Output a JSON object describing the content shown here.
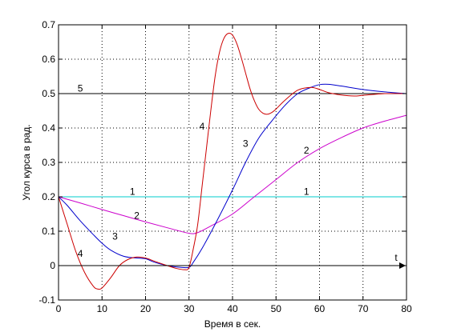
{
  "chart_data": {
    "type": "line",
    "title": "",
    "xlabel": "Время в сек.",
    "ylabel": "Угол курса в рад.",
    "t_label": "t",
    "xlim": [
      0,
      80
    ],
    "ylim": [
      -0.1,
      0.7
    ],
    "grid": true,
    "x_ticks": [
      0,
      10,
      20,
      30,
      40,
      50,
      60,
      70,
      80
    ],
    "y_ticks": [
      -0.1,
      0,
      0.1,
      0.2,
      0.3,
      0.4,
      0.5,
      0.6,
      0.7
    ],
    "x_tick_labels": [
      "0",
      "10",
      "20",
      "30",
      "40",
      "50",
      "60",
      "70",
      "80"
    ],
    "y_tick_labels": [
      "-0.1",
      "0",
      "0.1",
      "0.2",
      "0.3",
      "0.4",
      "0.5",
      "0.6",
      "0.7"
    ],
    "series": [
      {
        "name": "5",
        "color": "#000000",
        "labels": [
          {
            "text": "5",
            "x": 5,
            "y": 0.515
          }
        ],
        "points": [
          [
            0,
            0.5
          ],
          [
            80,
            0.5
          ]
        ]
      },
      {
        "name": "1",
        "color": "#00cccc",
        "labels": [
          {
            "text": "1",
            "x": 17,
            "y": 0.215
          },
          {
            "text": "1",
            "x": 57,
            "y": 0.215
          }
        ],
        "points": [
          [
            0,
            0.2
          ],
          [
            80,
            0.2
          ]
        ]
      },
      {
        "name": "2",
        "color": "#cc00cc",
        "labels": [
          {
            "text": "2",
            "x": 18,
            "y": 0.145
          },
          {
            "text": "2",
            "x": 57,
            "y": 0.335
          }
        ],
        "points": [
          [
            0,
            0.2
          ],
          [
            5,
            0.182
          ],
          [
            10,
            0.163
          ],
          [
            15,
            0.145
          ],
          [
            20,
            0.127
          ],
          [
            25,
            0.11
          ],
          [
            30,
            0.094
          ],
          [
            32,
            0.096
          ],
          [
            35,
            0.115
          ],
          [
            40,
            0.15
          ],
          [
            45,
            0.2
          ],
          [
            50,
            0.25
          ],
          [
            55,
            0.3
          ],
          [
            60,
            0.34
          ],
          [
            65,
            0.372
          ],
          [
            70,
            0.4
          ],
          [
            75,
            0.42
          ],
          [
            80,
            0.437
          ]
        ]
      },
      {
        "name": "3",
        "color": "#0000cc",
        "labels": [
          {
            "text": "3",
            "x": 13,
            "y": 0.085
          },
          {
            "text": "3",
            "x": 43,
            "y": 0.355
          }
        ],
        "points": [
          [
            0,
            0.2
          ],
          [
            2,
            0.175
          ],
          [
            5,
            0.13
          ],
          [
            8,
            0.09
          ],
          [
            10,
            0.065
          ],
          [
            12,
            0.045
          ],
          [
            15,
            0.027
          ],
          [
            18,
            0.022
          ],
          [
            20,
            0.02
          ],
          [
            22,
            0.01
          ],
          [
            25,
            0.0
          ],
          [
            28,
            -0.005
          ],
          [
            30,
            -0.005
          ],
          [
            31,
            0.01
          ],
          [
            33,
            0.05
          ],
          [
            36,
            0.12
          ],
          [
            40,
            0.22
          ],
          [
            43,
            0.3
          ],
          [
            46,
            0.37
          ],
          [
            49,
            0.42
          ],
          [
            52,
            0.465
          ],
          [
            55,
            0.5
          ],
          [
            58,
            0.518
          ],
          [
            60,
            0.526
          ],
          [
            62,
            0.527
          ],
          [
            65,
            0.522
          ],
          [
            70,
            0.512
          ],
          [
            75,
            0.505
          ],
          [
            80,
            0.5
          ]
        ]
      },
      {
        "name": "4",
        "color": "#cc0000",
        "labels": [
          {
            "text": "4",
            "x": 5,
            "y": 0.035
          },
          {
            "text": "4",
            "x": 33,
            "y": 0.405
          }
        ],
        "points": [
          [
            0,
            0.2
          ],
          [
            2,
            0.12
          ],
          [
            4,
            0.04
          ],
          [
            6,
            -0.02
          ],
          [
            8,
            -0.06
          ],
          [
            9,
            -0.068
          ],
          [
            10,
            -0.065
          ],
          [
            12,
            -0.035
          ],
          [
            14,
            0.0
          ],
          [
            16,
            0.018
          ],
          [
            18,
            0.025
          ],
          [
            20,
            0.022
          ],
          [
            22,
            0.013
          ],
          [
            25,
            0.0
          ],
          [
            27,
            -0.008
          ],
          [
            29,
            -0.012
          ],
          [
            30,
            -0.005
          ],
          [
            31,
            0.05
          ],
          [
            32,
            0.12
          ],
          [
            33,
            0.23
          ],
          [
            34,
            0.34
          ],
          [
            35,
            0.45
          ],
          [
            36,
            0.55
          ],
          [
            37,
            0.62
          ],
          [
            38,
            0.66
          ],
          [
            39,
            0.675
          ],
          [
            40,
            0.67
          ],
          [
            41,
            0.645
          ],
          [
            42,
            0.605
          ],
          [
            43,
            0.56
          ],
          [
            44,
            0.515
          ],
          [
            45,
            0.48
          ],
          [
            46,
            0.455
          ],
          [
            47,
            0.443
          ],
          [
            48,
            0.44
          ],
          [
            49,
            0.445
          ],
          [
            50,
            0.455
          ],
          [
            52,
            0.48
          ],
          [
            55,
            0.51
          ],
          [
            58,
            0.518
          ],
          [
            60,
            0.512
          ],
          [
            62,
            0.503
          ],
          [
            65,
            0.496
          ],
          [
            68,
            0.493
          ],
          [
            70,
            0.495
          ],
          [
            75,
            0.5
          ],
          [
            80,
            0.5
          ]
        ]
      }
    ]
  }
}
